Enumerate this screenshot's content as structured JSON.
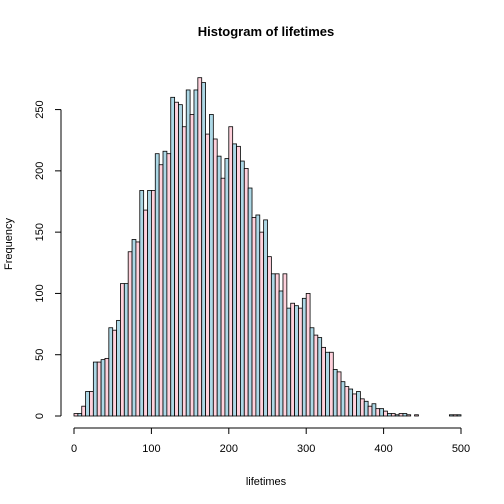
{
  "chart_data": {
    "type": "bar",
    "title": "Histogram of lifetimes",
    "xlabel": "lifetimes",
    "ylabel": "Frequency",
    "xlim": [
      0,
      500
    ],
    "ylim": [
      0,
      280
    ],
    "x_ticks": [
      0,
      100,
      200,
      300,
      400,
      500
    ],
    "y_ticks": [
      0,
      50,
      100,
      150,
      200,
      250
    ],
    "bin_width": 5,
    "bin_start": 0,
    "grid": false,
    "colors": [
      "#ffd1dc",
      "#add8e6"
    ],
    "values": [
      2,
      2,
      8,
      20,
      20,
      44,
      44,
      46,
      47,
      72,
      70,
      78,
      108,
      108,
      134,
      144,
      142,
      184,
      168,
      184,
      184,
      214,
      205,
      216,
      214,
      260,
      256,
      254,
      236,
      266,
      246,
      266,
      276,
      272,
      230,
      246,
      226,
      212,
      194,
      210,
      236,
      222,
      220,
      208,
      202,
      186,
      162,
      164,
      150,
      160,
      130,
      116,
      116,
      102,
      116,
      88,
      92,
      90,
      88,
      96,
      100,
      72,
      66,
      64,
      56,
      52,
      52,
      38,
      36,
      28,
      24,
      22,
      18,
      20,
      14,
      12,
      8,
      10,
      6,
      6,
      4,
      2,
      2,
      1,
      2,
      2,
      1,
      0,
      1,
      0,
      0,
      0,
      0,
      0,
      0,
      0,
      0,
      1,
      1,
      1
    ]
  }
}
